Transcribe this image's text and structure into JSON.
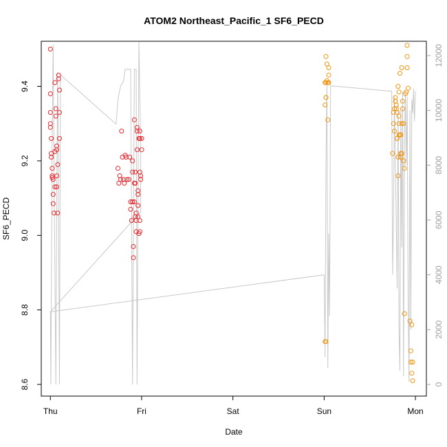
{
  "chart_data": {
    "type": "scatter",
    "title": "ATOM2 Northeast_Pacific_1 SF6_PECD",
    "xlabel": "Date",
    "ylabel": "SF6_PECD",
    "x_ticks": [
      "Thu",
      "Fri",
      "Sat",
      "Sun",
      "Mon"
    ],
    "x_range_days": [
      -0.1,
      4.12
    ],
    "y_ticks": [
      8.6,
      8.8,
      9.0,
      9.2,
      9.4
    ],
    "ylim": [
      8.6,
      9.52
    ],
    "y2_ticks": [
      0,
      2000,
      4000,
      6000,
      8000,
      10000,
      12000
    ],
    "y2lim": [
      0,
      12950
    ],
    "colors": {
      "series_1": "#e8242a",
      "series_2": "#f0940f",
      "line": "#c8c8c8",
      "right_axis": "#a0a0a0"
    },
    "series": [
      {
        "key": "series_1",
        "points": [
          [
            0.0,
            9.5
          ],
          [
            0.0,
            9.38
          ],
          [
            0.0,
            9.33
          ],
          [
            0.0,
            9.3
          ],
          [
            0.0,
            9.29
          ],
          [
            0.01,
            9.26
          ],
          [
            0.01,
            9.22
          ],
          [
            0.01,
            9.21
          ],
          [
            0.02,
            9.18
          ],
          [
            0.02,
            9.16
          ],
          [
            0.02,
            9.155
          ],
          [
            0.03,
            9.15
          ],
          [
            0.03,
            9.11
          ],
          [
            0.03,
            9.085
          ],
          [
            0.04,
            9.06
          ],
          [
            0.05,
            9.13
          ],
          [
            0.05,
            9.225
          ],
          [
            0.05,
            9.41
          ],
          [
            0.06,
            9.32
          ],
          [
            0.06,
            9.34
          ],
          [
            0.07,
            9.13
          ],
          [
            0.07,
            9.16
          ],
          [
            0.07,
            9.23
          ],
          [
            0.07,
            9.24
          ],
          [
            0.08,
            9.06
          ],
          [
            0.08,
            9.19
          ],
          [
            0.09,
            9.42
          ],
          [
            0.09,
            9.43
          ],
          [
            0.1,
            9.33
          ],
          [
            0.1,
            9.39
          ],
          [
            0.1,
            9.26
          ],
          [
            0.74,
            9.18
          ],
          [
            0.75,
            9.14
          ],
          [
            0.76,
            9.16
          ],
          [
            0.77,
            9.15
          ],
          [
            0.78,
            9.28
          ],
          [
            0.79,
            9.21
          ],
          [
            0.8,
            9.15
          ],
          [
            0.81,
            9.14
          ],
          [
            0.82,
            9.215
          ],
          [
            0.83,
            9.21
          ],
          [
            0.84,
            9.15
          ],
          [
            0.86,
            9.15
          ],
          [
            0.87,
            9.21
          ],
          [
            0.88,
            9.07
          ],
          [
            0.88,
            9.09
          ],
          [
            0.89,
            9.04
          ],
          [
            0.9,
            9.17
          ],
          [
            0.9,
            9.09
          ],
          [
            0.9,
            9.2
          ],
          [
            0.91,
            8.97
          ],
          [
            0.91,
            8.94
          ],
          [
            0.92,
            9.31
          ],
          [
            0.92,
            9.14
          ],
          [
            0.92,
            9.09
          ],
          [
            0.93,
            9.14
          ],
          [
            0.93,
            9.17
          ],
          [
            0.93,
            9.05
          ],
          [
            0.94,
            9.06
          ],
          [
            0.94,
            9.04
          ],
          [
            0.94,
            9.01
          ],
          [
            0.95,
            9.23
          ],
          [
            0.95,
            9.29
          ],
          [
            0.95,
            9.28
          ],
          [
            0.96,
            9.12
          ],
          [
            0.96,
            9.11
          ],
          [
            0.96,
            9.08
          ],
          [
            0.96,
            9.05
          ],
          [
            0.97,
            9.005
          ],
          [
            0.97,
            9.26
          ],
          [
            0.98,
            9.26
          ],
          [
            0.98,
            9.04
          ],
          [
            0.98,
            9.01
          ],
          [
            0.98,
            9.28
          ],
          [
            0.98,
            9.17
          ],
          [
            0.99,
            9.15
          ],
          [
            0.99,
            9.16
          ],
          [
            1.0,
            9.23
          ],
          [
            1.0,
            9.26
          ]
        ]
      },
      {
        "key": "series_2",
        "points": [
          [
            3.01,
            8.715
          ],
          [
            3.01,
            9.35
          ],
          [
            3.01,
            9.41
          ],
          [
            3.02,
            9.48
          ],
          [
            3.02,
            8.715
          ],
          [
            3.02,
            9.37
          ],
          [
            3.02,
            9.37
          ],
          [
            3.02,
            9.41
          ],
          [
            3.03,
            9.46
          ],
          [
            3.03,
            9.415
          ],
          [
            3.04,
            9.41
          ],
          [
            3.04,
            9.31
          ],
          [
            3.05,
            9.41
          ],
          [
            3.05,
            9.43
          ],
          [
            3.05,
            9.45
          ],
          [
            3.75,
            9.22
          ],
          [
            3.76,
            9.33
          ],
          [
            3.76,
            9.3
          ],
          [
            3.77,
            9.28
          ],
          [
            3.77,
            9.34
          ],
          [
            3.78,
            9.36
          ],
          [
            3.78,
            9.37
          ],
          [
            3.78,
            9.36
          ],
          [
            3.79,
            9.35
          ],
          [
            3.79,
            9.34
          ],
          [
            3.8,
            9.33
          ],
          [
            3.8,
            9.26
          ],
          [
            3.8,
            9.26
          ],
          [
            3.81,
            9.21
          ],
          [
            3.81,
            9.16
          ],
          [
            3.81,
            9.4
          ],
          [
            3.82,
            9.385
          ],
          [
            3.82,
            9.32
          ],
          [
            3.82,
            9.27
          ],
          [
            3.82,
            9.3
          ],
          [
            3.83,
            9.435
          ],
          [
            3.83,
            9.27
          ],
          [
            3.84,
            9.27
          ],
          [
            3.84,
            9.22
          ],
          [
            3.84,
            9.21
          ],
          [
            3.85,
            9.22
          ],
          [
            3.85,
            9.45
          ],
          [
            3.85,
            9.3
          ],
          [
            3.86,
            9.36
          ],
          [
            3.86,
            9.34
          ],
          [
            3.87,
            9.3
          ],
          [
            3.87,
            9.2
          ],
          [
            3.88,
            9.18
          ],
          [
            3.88,
            8.79
          ],
          [
            3.89,
            9.38
          ],
          [
            3.9,
            9.385
          ],
          [
            3.91,
            9.45
          ],
          [
            3.91,
            9.48
          ],
          [
            3.91,
            9.51
          ],
          [
            3.92,
            9.395
          ],
          [
            3.94,
            8.77
          ],
          [
            3.95,
            8.69
          ],
          [
            3.95,
            8.66
          ],
          [
            3.96,
            8.63
          ],
          [
            3.96,
            8.76
          ],
          [
            3.97,
            8.66
          ],
          [
            3.97,
            8.61
          ]
        ]
      }
    ],
    "line_y2": [
      [
        0.0,
        2650
      ],
      [
        0.005,
        0
      ],
      [
        0.01,
        3000
      ],
      [
        0.02,
        9000
      ],
      [
        0.03,
        12400
      ],
      [
        0.04,
        8000
      ],
      [
        0.05,
        4000
      ],
      [
        0.06,
        0
      ],
      [
        0.07,
        7000
      ],
      [
        0.08,
        11400
      ],
      [
        0.09,
        6000
      ],
      [
        0.1,
        0
      ],
      [
        0.11,
        11300
      ],
      [
        0.72,
        9500
      ],
      [
        0.74,
        10400
      ],
      [
        0.77,
        10900
      ],
      [
        0.8,
        11050
      ],
      [
        0.82,
        11500
      ],
      [
        0.88,
        11500
      ],
      [
        0.9,
        0
      ],
      [
        0.92,
        11500
      ],
      [
        0.94,
        11500
      ],
      [
        0.95,
        0
      ],
      [
        0.97,
        12500
      ],
      [
        0.98,
        10500
      ],
      [
        0.99,
        9000
      ],
      [
        0.99,
        6300
      ],
      [
        0.0,
        2650
      ],
      [
        3.0,
        4000
      ],
      [
        3.01,
        1000
      ],
      [
        3.02,
        8000
      ],
      [
        3.03,
        11000
      ],
      [
        3.04,
        600
      ],
      [
        3.05,
        5500
      ],
      [
        3.06,
        2500
      ],
      [
        3.07,
        10900
      ],
      [
        3.74,
        10700
      ],
      [
        3.75,
        4000
      ],
      [
        3.76,
        6000
      ],
      [
        3.77,
        10500
      ],
      [
        3.78,
        8000
      ],
      [
        3.79,
        6000
      ],
      [
        3.8,
        3500
      ],
      [
        3.81,
        10200
      ],
      [
        3.82,
        2000
      ],
      [
        3.83,
        500
      ],
      [
        3.84,
        10000
      ],
      [
        3.85,
        5000
      ],
      [
        3.86,
        10700
      ],
      [
        3.87,
        300
      ],
      [
        3.88,
        9000
      ],
      [
        3.89,
        10600
      ],
      [
        3.9,
        8000
      ],
      [
        3.91,
        10500
      ],
      [
        3.92,
        3000
      ],
      [
        3.93,
        100
      ],
      [
        3.94,
        10000
      ],
      [
        3.95,
        2000
      ],
      [
        3.96,
        10400
      ],
      [
        3.97,
        9900
      ],
      [
        3.98,
        10800
      ],
      [
        3.99,
        9600
      ],
      [
        4.0,
        10700
      ]
    ]
  }
}
